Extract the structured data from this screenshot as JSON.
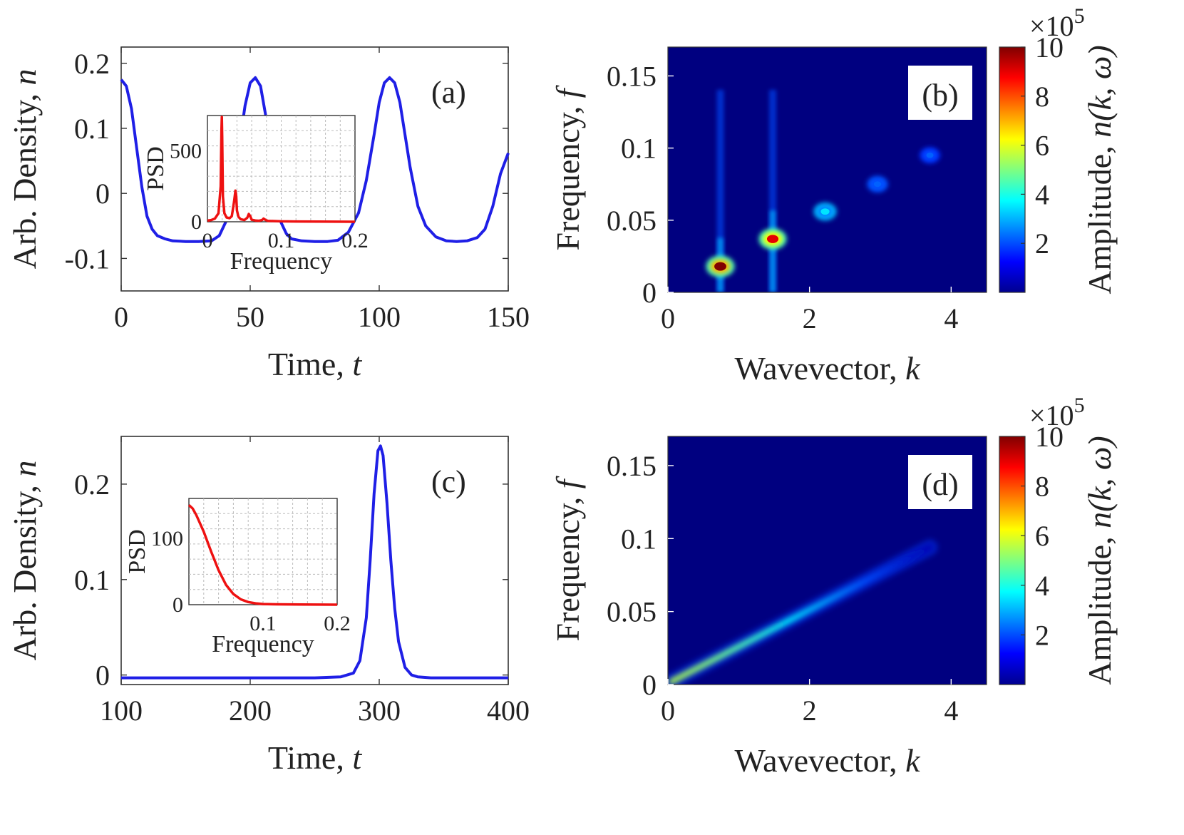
{
  "chart_data": [
    {
      "id": "a",
      "type": "line",
      "panel_label": "(a)",
      "xlabel": "Time, ",
      "xlabel_var": "t",
      "ylabel": "Arb.  Density, ",
      "ylabel_var": "n",
      "xlim": [
        0,
        150
      ],
      "ylim": [
        -0.15,
        0.225
      ],
      "xticks": [
        "0",
        "50",
        "100",
        "150"
      ],
      "yticks": [
        "0.2",
        "0.1",
        "0",
        "-0.1"
      ],
      "line_color": "#1f1fe6",
      "series": [
        {
          "name": "density",
          "x": [
            0,
            2,
            4,
            6,
            8,
            10,
            12,
            14,
            17,
            20,
            25,
            30,
            35,
            38,
            41,
            44,
            46,
            48,
            50,
            52,
            54,
            56,
            58,
            60,
            62,
            64,
            66,
            70,
            75,
            80,
            84,
            88,
            92,
            95,
            98,
            100,
            102,
            104,
            106,
            108,
            110,
            112,
            115,
            118,
            122,
            126,
            130,
            134,
            138,
            141,
            144,
            147,
            150
          ],
          "y": [
            0.175,
            0.165,
            0.13,
            0.07,
            0.01,
            -0.035,
            -0.055,
            -0.065,
            -0.07,
            -0.073,
            -0.074,
            -0.074,
            -0.073,
            -0.065,
            -0.04,
            0.02,
            0.08,
            0.135,
            0.17,
            0.178,
            0.165,
            0.12,
            0.05,
            -0.01,
            -0.045,
            -0.062,
            -0.07,
            -0.073,
            -0.074,
            -0.074,
            -0.072,
            -0.06,
            -0.03,
            0.02,
            0.09,
            0.14,
            0.17,
            0.178,
            0.17,
            0.14,
            0.09,
            0.04,
            -0.02,
            -0.05,
            -0.067,
            -0.073,
            -0.074,
            -0.073,
            -0.068,
            -0.055,
            -0.02,
            0.03,
            0.062
          ]
        }
      ],
      "inset": {
        "xlabel": "Frequency",
        "ylabel": "PSD",
        "xlim": [
          0,
          0.2
        ],
        "ylim": [
          0,
          750
        ],
        "xticks": [
          "0",
          "0.1",
          "0.2"
        ],
        "yticks": [
          "500",
          "0"
        ],
        "line_color": "#ee1111",
        "x": [
          0,
          0.005,
          0.01,
          0.015,
          0.018,
          0.019,
          0.0195,
          0.02,
          0.021,
          0.023,
          0.026,
          0.03,
          0.033,
          0.036,
          0.038,
          0.039,
          0.04,
          0.042,
          0.045,
          0.05,
          0.054,
          0.056,
          0.058,
          0.06,
          0.065,
          0.07,
          0.074,
          0.076,
          0.079,
          0.082,
          0.09,
          0.1,
          0.12,
          0.15,
          0.2
        ],
        "y": [
          8,
          12,
          22,
          60,
          250,
          650,
          740,
          600,
          180,
          60,
          30,
          25,
          40,
          140,
          220,
          180,
          80,
          35,
          18,
          12,
          28,
          55,
          40,
          14,
          9,
          7,
          12,
          22,
          12,
          6,
          5,
          3,
          2,
          1,
          0
        ]
      }
    },
    {
      "id": "b",
      "type": "heatmap",
      "panel_label": "(b)",
      "xlabel": "Wavevector, ",
      "xlabel_var": "k",
      "ylabel": "Frequency, ",
      "ylabel_var": "f",
      "xlim": [
        0,
        4.5
      ],
      "ylim": [
        0,
        0.17
      ],
      "xticks": [
        "0",
        "2",
        "4"
      ],
      "yticks": [
        "0.15",
        "0.1",
        "0.05",
        "0"
      ],
      "colorbar": {
        "label": "Amplitude, ",
        "label_var": "n(k, ω)",
        "multiplier": "×10",
        "multiplier_exp": "5",
        "range": [
          0,
          10
        ],
        "ticks": [
          "10",
          "8",
          "6",
          "4",
          "2"
        ]
      },
      "peaks": [
        {
          "k": 0.74,
          "f": 0.018,
          "amplitude": 10
        },
        {
          "k": 1.48,
          "f": 0.037,
          "amplitude": 9
        },
        {
          "k": 2.22,
          "f": 0.056,
          "amplitude": 3.5
        },
        {
          "k": 2.96,
          "f": 0.075,
          "amplitude": 1.2
        },
        {
          "k": 3.7,
          "f": 0.095,
          "amplitude": 0.5
        }
      ]
    },
    {
      "id": "c",
      "type": "line",
      "panel_label": "(c)",
      "xlabel": "Time, ",
      "xlabel_var": "t",
      "ylabel": "Arb.  Density, ",
      "ylabel_var": "n",
      "xlim": [
        100,
        400
      ],
      "ylim": [
        -0.01,
        0.25
      ],
      "xticks": [
        "100",
        "200",
        "300",
        "400"
      ],
      "yticks": [
        "0.2",
        "0.1",
        "0"
      ],
      "line_color": "#1f1fe6",
      "series": [
        {
          "name": "density",
          "x": [
            100,
            150,
            200,
            250,
            270,
            280,
            285,
            290,
            293,
            296,
            299,
            301,
            303,
            306,
            309,
            312,
            315,
            320,
            325,
            330,
            340,
            350,
            400
          ],
          "y": [
            -0.003,
            -0.003,
            -0.003,
            -0.003,
            -0.002,
            0.002,
            0.015,
            0.06,
            0.12,
            0.19,
            0.235,
            0.24,
            0.23,
            0.18,
            0.12,
            0.07,
            0.035,
            0.008,
            0.0,
            -0.002,
            -0.003,
            -0.003,
            -0.003
          ]
        }
      ],
      "inset": {
        "xlabel": "Frequency",
        "ylabel": "PSD",
        "xlim": [
          0,
          0.2
        ],
        "ylim": [
          0,
          160
        ],
        "xticks": [
          "0.1",
          "0.2"
        ],
        "yticks": [
          "100",
          "0"
        ],
        "line_color": "#ee1111",
        "x": [
          0,
          0.005,
          0.01,
          0.02,
          0.03,
          0.04,
          0.05,
          0.06,
          0.07,
          0.08,
          0.09,
          0.1,
          0.12,
          0.15,
          0.2
        ],
        "y": [
          150,
          145,
          135,
          110,
          80,
          52,
          30,
          16,
          8,
          4,
          2,
          1,
          0.5,
          0.2,
          0
        ]
      }
    },
    {
      "id": "d",
      "type": "heatmap",
      "panel_label": "(d)",
      "xlabel": "Wavevector, ",
      "xlabel_var": "k",
      "ylabel": "Frequency, ",
      "ylabel_var": "f",
      "xlim": [
        0,
        4.5
      ],
      "ylim": [
        0,
        0.17
      ],
      "xticks": [
        "0",
        "2",
        "4"
      ],
      "yticks": [
        "0.15",
        "0.1",
        "0.05",
        "0"
      ],
      "colorbar": {
        "label": "Amplitude, ",
        "label_var": "n(k, ω)",
        "multiplier": "×10",
        "multiplier_exp": "5",
        "range": [
          0,
          10
        ],
        "ticks": [
          "10",
          "8",
          "6",
          "4",
          "2"
        ]
      },
      "ridge": {
        "k_start": 0.05,
        "f_start": 0.002,
        "k_end": 3.7,
        "f_end": 0.094,
        "peak_amplitude": 5
      }
    }
  ]
}
